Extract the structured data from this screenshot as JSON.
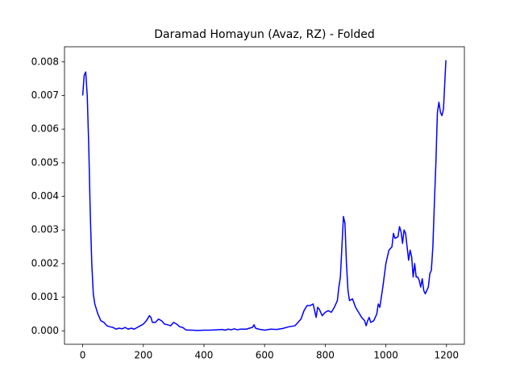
{
  "chart_data": {
    "type": "line",
    "title": "Daramad Homayun (Avaz, RZ) - Folded",
    "x": [
      0,
      5,
      10,
      15,
      20,
      25,
      30,
      35,
      40,
      50,
      60,
      70,
      80,
      90,
      100,
      110,
      120,
      130,
      140,
      150,
      160,
      170,
      180,
      190,
      200,
      210,
      220,
      225,
      230,
      240,
      250,
      260,
      270,
      280,
      290,
      300,
      310,
      320,
      330,
      340,
      350,
      360,
      380,
      400,
      420,
      440,
      460,
      470,
      480,
      490,
      500,
      510,
      520,
      540,
      550,
      560,
      565,
      570,
      580,
      600,
      620,
      640,
      660,
      680,
      700,
      710,
      720,
      730,
      740,
      750,
      760,
      765,
      770,
      775,
      780,
      790,
      800,
      810,
      820,
      830,
      840,
      845,
      850,
      855,
      860,
      865,
      870,
      875,
      880,
      890,
      900,
      910,
      920,
      930,
      935,
      940,
      945,
      950,
      960,
      970,
      975,
      980,
      990,
      1000,
      1010,
      1020,
      1025,
      1030,
      1040,
      1045,
      1050,
      1055,
      1060,
      1065,
      1070,
      1075,
      1080,
      1085,
      1090,
      1095,
      1100,
      1105,
      1110,
      1115,
      1120,
      1125,
      1130,
      1140,
      1145,
      1150,
      1155,
      1160,
      1165,
      1170,
      1175,
      1180,
      1185,
      1190,
      1195,
      1198
    ],
    "series": [
      {
        "color": "#0000ff",
        "values": [
          0.007,
          0.0076,
          0.0077,
          0.007,
          0.0055,
          0.0035,
          0.002,
          0.0011,
          0.0008,
          0.0005,
          0.0003,
          0.00025,
          0.00015,
          0.00012,
          0.0001,
          5e-05,
          8e-05,
          6e-05,
          0.0001,
          5e-05,
          8e-05,
          5e-05,
          0.0001,
          0.00015,
          0.0002,
          0.0003,
          0.00045,
          0.0004,
          0.00025,
          0.00025,
          0.00035,
          0.0003,
          0.0002,
          0.00018,
          0.00015,
          0.00025,
          0.0002,
          0.00012,
          0.0001,
          3e-05,
          2e-05,
          2e-05,
          1e-05,
          2e-05,
          2e-05,
          3e-05,
          4e-05,
          2e-05,
          5e-05,
          3e-05,
          6e-05,
          3e-05,
          5e-05,
          5e-05,
          8e-05,
          0.0001,
          0.00018,
          8e-05,
          5e-05,
          2e-05,
          5e-05,
          4e-05,
          7e-05,
          0.00012,
          0.00015,
          0.00025,
          0.00035,
          0.0006,
          0.00075,
          0.00075,
          0.0008,
          0.0006,
          0.0004,
          0.0007,
          0.00065,
          0.00045,
          0.00055,
          0.0006,
          0.00055,
          0.0007,
          0.0009,
          0.0013,
          0.0016,
          0.0025,
          0.0034,
          0.0032,
          0.002,
          0.0012,
          0.0009,
          0.00095,
          0.0007,
          0.00055,
          0.0004,
          0.0003,
          0.00015,
          0.0003,
          0.0004,
          0.00025,
          0.0003,
          0.0005,
          0.0008,
          0.0007,
          0.0013,
          0.002,
          0.0024,
          0.0025,
          0.0029,
          0.00275,
          0.0028,
          0.0031,
          0.00295,
          0.0026,
          0.003,
          0.0029,
          0.0025,
          0.0021,
          0.0024,
          0.0022,
          0.0016,
          0.002,
          0.0016,
          0.0016,
          0.0015,
          0.0013,
          0.00155,
          0.0012,
          0.0011,
          0.0013,
          0.0017,
          0.0018,
          0.0025,
          0.0038,
          0.005,
          0.0065,
          0.0068,
          0.0065,
          0.0064,
          0.0066,
          0.0075,
          0.00805
        ]
      }
    ],
    "xlim": [
      -60,
      1259
    ],
    "ylim": [
      -0.0004,
      0.00845
    ],
    "xticks": [
      0,
      200,
      400,
      600,
      800,
      1000,
      1200
    ],
    "yticks": [
      {
        "value": 0,
        "label": "0.000"
      },
      {
        "value": 0.001,
        "label": "0.001"
      },
      {
        "value": 0.002,
        "label": "0.002"
      },
      {
        "value": 0.003,
        "label": "0.003"
      },
      {
        "value": 0.004,
        "label": "0.004"
      },
      {
        "value": 0.005,
        "label": "0.005"
      },
      {
        "value": 0.006,
        "label": "0.006"
      },
      {
        "value": 0.007,
        "label": "0.007"
      },
      {
        "value": 0.008,
        "label": "0.008"
      }
    ],
    "grid": false
  }
}
